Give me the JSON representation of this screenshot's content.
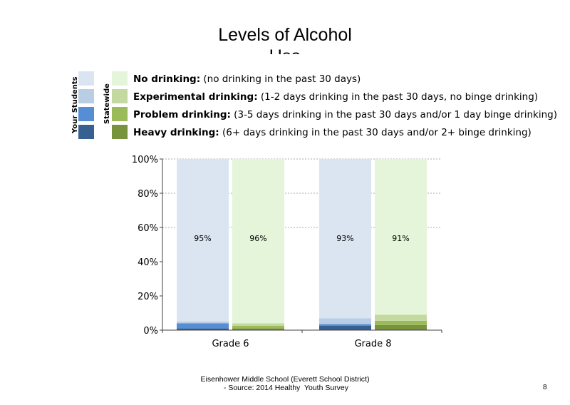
{
  "page": {
    "title": "Levels of Alcohol Use",
    "footer_line1": "Eisenhower Middle School (Everett School District)",
    "footer_line2": " - Source: 2014 Healthy  Youth Survey",
    "page_number": "8"
  },
  "legend": {
    "group_your_students": "Your Students",
    "group_statewide": "Statewide",
    "items": [
      {
        "bold": "No drinking:",
        "rest": " (no drinking in the past 30 days)",
        "color_your": "#dbe5f1",
        "color_state": "#e5f5d9"
      },
      {
        "bold": "Experimental drinking:",
        "rest": " (1-2 days drinking in the past 30 days, no binge drinking)",
        "color_your": "#b9cde5",
        "color_state": "#c4d9a0"
      },
      {
        "bold": "Problem drinking:",
        "rest": " (3-5 days drinking in the past 30 days and/or 1 day binge drinking)",
        "color_your": "#558ed5",
        "color_state": "#9bbb59"
      },
      {
        "bold": "Heavy drinking:",
        "rest": " (6+ days drinking in the past 30 days and/or 2+ binge drinking)",
        "color_your": "#366092",
        "color_state": "#77933c"
      }
    ]
  },
  "chart_data": {
    "type": "bar",
    "stacked": true,
    "categories": [
      "Grade 6",
      "Grade 8"
    ],
    "y_ticks": [
      "0%",
      "20%",
      "40%",
      "60%",
      "80%",
      "100%"
    ],
    "ylim": [
      0,
      100
    ],
    "grid": "dashed at 60%, 80%, 100%",
    "bars": [
      {
        "category": "Grade 6",
        "group": "Your Students",
        "label": "95%",
        "segments": [
          {
            "name": "Heavy drinking",
            "value": 1,
            "color": "#366092"
          },
          {
            "name": "Problem drinking",
            "value": 3,
            "color": "#558ed5"
          },
          {
            "name": "Experimental drinking",
            "value": 1,
            "color": "#b9cde5"
          },
          {
            "name": "No drinking",
            "value": 95,
            "color": "#dbe5f1"
          }
        ]
      },
      {
        "category": "Grade 6",
        "group": "Statewide",
        "label": "96%",
        "segments": [
          {
            "name": "Heavy drinking",
            "value": 1,
            "color": "#77933c"
          },
          {
            "name": "Problem drinking",
            "value": 1.5,
            "color": "#9bbb59"
          },
          {
            "name": "Experimental drinking",
            "value": 1.5,
            "color": "#c4d9a0"
          },
          {
            "name": "No drinking",
            "value": 96,
            "color": "#e5f5d9"
          }
        ]
      },
      {
        "category": "Grade 8",
        "group": "Your Students",
        "label": "93%",
        "segments": [
          {
            "name": "Heavy drinking",
            "value": 2.5,
            "color": "#366092"
          },
          {
            "name": "Problem drinking",
            "value": 1,
            "color": "#558ed5"
          },
          {
            "name": "Experimental drinking",
            "value": 3.5,
            "color": "#b9cde5"
          },
          {
            "name": "No drinking",
            "value": 93,
            "color": "#dbe5f1"
          }
        ]
      },
      {
        "category": "Grade 8",
        "group": "Statewide",
        "label": "91%",
        "segments": [
          {
            "name": "Heavy drinking",
            "value": 3,
            "color": "#77933c"
          },
          {
            "name": "Problem drinking",
            "value": 2.5,
            "color": "#9bbb59"
          },
          {
            "name": "Experimental drinking",
            "value": 3.5,
            "color": "#c4d9a0"
          },
          {
            "name": "No drinking",
            "value": 91,
            "color": "#e5f5d9"
          }
        ]
      }
    ]
  }
}
